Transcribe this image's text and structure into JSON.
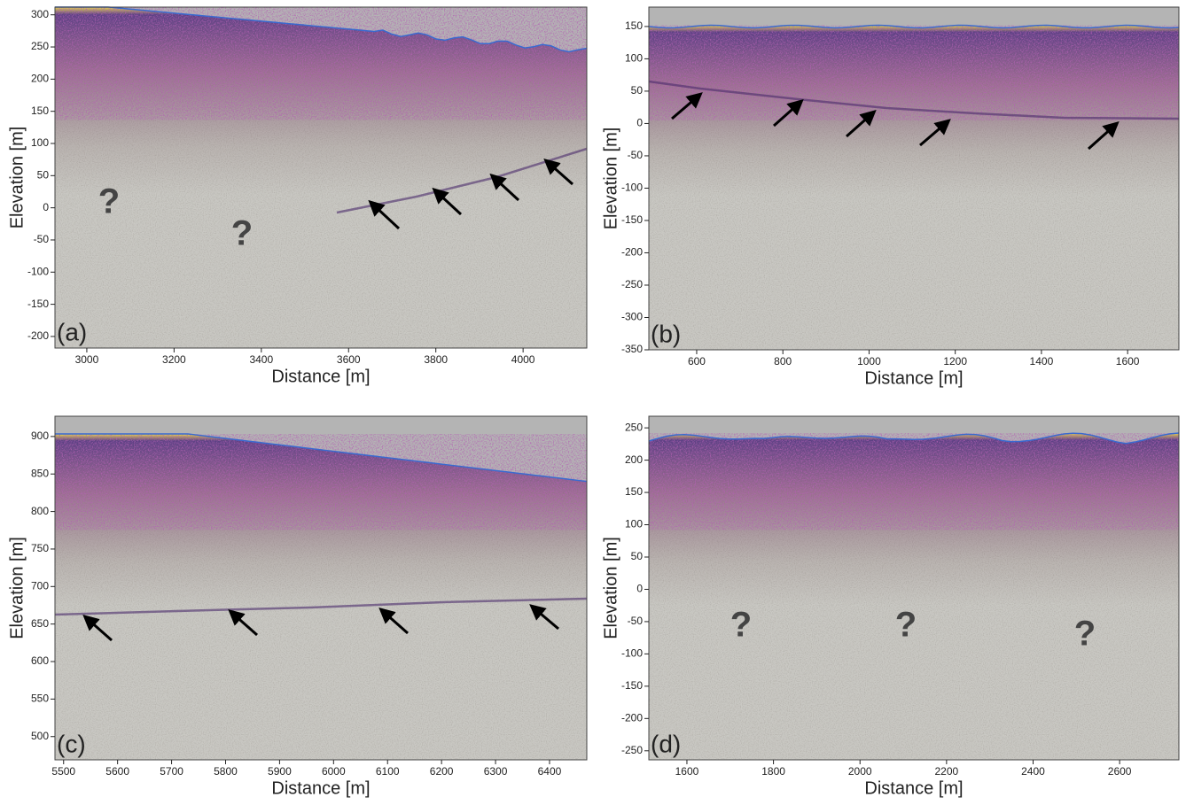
{
  "chart_data": [
    {
      "type": "radargram",
      "panel_label": "(a)",
      "xlabel": "Distance [m]",
      "ylabel": "Elevation [m]",
      "xlim": [
        2927,
        4146
      ],
      "ylim": [
        -218,
        312
      ],
      "xticks": [
        3000,
        3200,
        3400,
        3600,
        3800,
        4000
      ],
      "yticks": [
        300,
        250,
        200,
        150,
        100,
        50,
        0,
        -50,
        -100,
        -150,
        -200
      ],
      "annotations": [
        "?",
        "?"
      ]
    },
    {
      "type": "radargram",
      "panel_label": "(b)",
      "xlabel": "Distance [m]",
      "ylabel": "Elevation [m]",
      "xlim": [
        489,
        1719
      ],
      "ylim": [
        -350,
        180
      ],
      "xticks": [
        600,
        800,
        1000,
        1200,
        1400,
        1600
      ],
      "yticks": [
        150,
        100,
        50,
        0,
        -50,
        -100,
        -150,
        -200,
        -250,
        -300,
        -350
      ],
      "annotations": []
    },
    {
      "type": "radargram",
      "panel_label": "(c)",
      "xlabel": "Distance [m]",
      "ylabel": "Elevation [m]",
      "xlim": [
        5484,
        6469
      ],
      "ylim": [
        469,
        927
      ],
      "xticks": [
        5500,
        5600,
        5700,
        5800,
        5900,
        6000,
        6100,
        6200,
        6300,
        6400
      ],
      "yticks": [
        900,
        850,
        800,
        750,
        700,
        650,
        600,
        550,
        500
      ],
      "annotations": []
    },
    {
      "type": "radargram",
      "panel_label": "(d)",
      "xlabel": "Distance [m]",
      "ylabel": "Elevation [m]",
      "xlim": [
        1512,
        2737
      ],
      "ylim": [
        -264,
        268
      ],
      "xticks": [
        1600,
        1800,
        2000,
        2200,
        2400,
        2600
      ],
      "yticks": [
        250,
        200,
        150,
        100,
        50,
        0,
        -50,
        -100,
        -150,
        -200,
        -250
      ],
      "annotations": [
        "?",
        "?",
        "?"
      ]
    }
  ]
}
